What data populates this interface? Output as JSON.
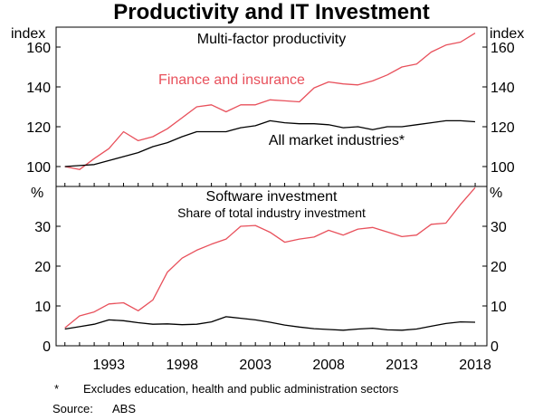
{
  "title": "Productivity and IT Investment",
  "colors": {
    "finance": "#e8505b",
    "market": "#000000",
    "axis": "#000000"
  },
  "chart_data": [
    {
      "type": "line",
      "title": "Multi-factor productivity",
      "ylabel_left": "index",
      "ylabel_right": "index",
      "ylim": [
        90,
        170
      ],
      "yticks": [
        100,
        120,
        140,
        160
      ],
      "x": [
        1990,
        1991,
        1992,
        1993,
        1994,
        1995,
        1996,
        1997,
        1998,
        1999,
        2000,
        2001,
        2002,
        2003,
        2004,
        2005,
        2006,
        2007,
        2008,
        2009,
        2010,
        2011,
        2012,
        2013,
        2014,
        2015,
        2016,
        2017,
        2018
      ],
      "series": [
        {
          "name": "Finance and insurance",
          "color": "#e8505b",
          "values": [
            100,
            98.5,
            104,
            109,
            117.5,
            113,
            115,
            119,
            124.5,
            130,
            131,
            127.5,
            131,
            131,
            133.5,
            133,
            132.5,
            139.5,
            142.5,
            141.5,
            141,
            143,
            146,
            150,
            151.5,
            157.5,
            161,
            162.5,
            167
          ]
        },
        {
          "name": "All market industries*",
          "color": "#000000",
          "values": [
            100,
            100.5,
            101,
            103,
            105,
            107,
            110,
            112,
            115,
            117.5,
            117.5,
            117.5,
            119.5,
            120.5,
            123,
            122,
            121.5,
            121.5,
            121,
            119.5,
            120,
            118.5,
            120,
            120,
            121,
            122,
            123,
            123,
            122.5
          ]
        }
      ]
    },
    {
      "type": "line",
      "title": "Software investment",
      "subtitle": "Share of total industry investment",
      "ylabel_left": "%",
      "ylabel_right": "%",
      "ylim": [
        0,
        40
      ],
      "yticks": [
        0,
        10,
        20,
        30
      ],
      "x": [
        1990,
        1991,
        1992,
        1993,
        1994,
        1995,
        1996,
        1997,
        1998,
        1999,
        2000,
        2001,
        2002,
        2003,
        2004,
        2005,
        2006,
        2007,
        2008,
        2009,
        2010,
        2011,
        2012,
        2013,
        2014,
        2015,
        2016,
        2017,
        2018
      ],
      "series": [
        {
          "name": "Finance and insurance",
          "color": "#e8505b",
          "values": [
            4.5,
            7.5,
            8.5,
            10.5,
            10.8,
            8.8,
            11.5,
            18.5,
            22,
            24,
            25.5,
            26.8,
            30,
            30.2,
            28.5,
            26,
            26.8,
            27.3,
            29,
            27.8,
            29.3,
            29.7,
            28.6,
            27.4,
            27.8,
            30.5,
            30.8,
            35.5,
            39.7
          ]
        },
        {
          "name": "All market industries*",
          "color": "#000000",
          "values": [
            4.2,
            4.8,
            5.4,
            6.5,
            6.3,
            5.8,
            5.4,
            5.5,
            5.3,
            5.4,
            6.0,
            7.3,
            6.9,
            6.5,
            5.9,
            5.2,
            4.7,
            4.3,
            4.1,
            3.9,
            4.2,
            4.4,
            4.0,
            3.9,
            4.2,
            4.9,
            5.6,
            6.0,
            5.9
          ]
        }
      ]
    }
  ],
  "x_axis": {
    "ticks": [
      1993,
      1998,
      2003,
      2008,
      2013,
      2018
    ],
    "labels": [
      "1993",
      "1998",
      "2003",
      "2008",
      "2013",
      "2018"
    ]
  },
  "footnote": {
    "marker": "*",
    "text": "Excludes education, health and public administration sectors"
  },
  "source": {
    "label": "Source:",
    "value": "ABS"
  }
}
